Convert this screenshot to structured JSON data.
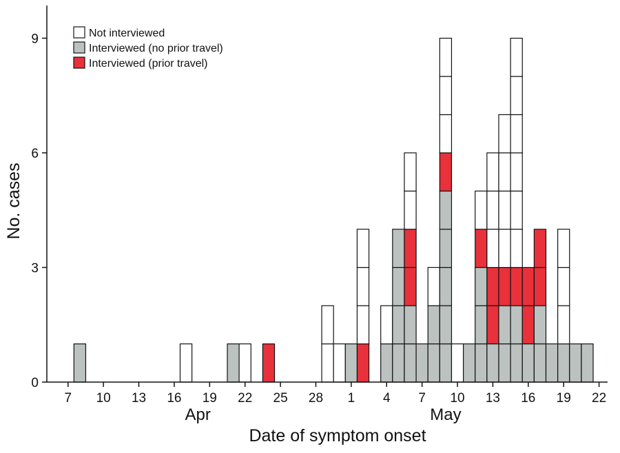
{
  "chart_data": {
    "type": "bar",
    "stacked": true,
    "unit_blocks": true,
    "xlabel": "Date of symptom onset",
    "ylabel": "No. cases",
    "ylim": [
      0,
      10
    ],
    "yticks": [
      0,
      3,
      6,
      9
    ],
    "x_tick_labels": [
      {
        "date": "2018-04-07",
        "label": "7"
      },
      {
        "date": "2018-04-10",
        "label": "10"
      },
      {
        "date": "2018-04-13",
        "label": "13"
      },
      {
        "date": "2018-04-16",
        "label": "16"
      },
      {
        "date": "2018-04-19",
        "label": "19"
      },
      {
        "date": "2018-04-22",
        "label": "22"
      },
      {
        "date": "2018-04-25",
        "label": "25"
      },
      {
        "date": "2018-04-28",
        "label": "28"
      },
      {
        "date": "2018-05-01",
        "label": "1"
      },
      {
        "date": "2018-05-04",
        "label": "4"
      },
      {
        "date": "2018-05-07",
        "label": "7"
      },
      {
        "date": "2018-05-10",
        "label": "10"
      },
      {
        "date": "2018-05-13",
        "label": "13"
      },
      {
        "date": "2018-05-16",
        "label": "16"
      },
      {
        "date": "2018-05-19",
        "label": "19"
      },
      {
        "date": "2018-05-22",
        "label": "22"
      }
    ],
    "month_labels": [
      {
        "label": "Apr",
        "date": "2018-04-18"
      },
      {
        "label": "May",
        "date": "2018-05-09"
      }
    ],
    "legend_position": "top-left",
    "series": [
      {
        "name": "Interviewed (no prior travel)",
        "color": "#bcc2bf"
      },
      {
        "name": "Interviewed (prior travel)",
        "color": "#e8313b"
      },
      {
        "name": "Not interviewed",
        "color": "#ffffff"
      }
    ],
    "legend_order": [
      2,
      0,
      1
    ],
    "dates": [
      "2018-04-08",
      "2018-04-17",
      "2018-04-21",
      "2018-04-22",
      "2018-04-24",
      "2018-04-29",
      "2018-04-30",
      "2018-05-01",
      "2018-05-02",
      "2018-05-04",
      "2018-05-05",
      "2018-05-06",
      "2018-05-07",
      "2018-05-08",
      "2018-05-09",
      "2018-05-10",
      "2018-05-11",
      "2018-05-12",
      "2018-05-13",
      "2018-05-14",
      "2018-05-15",
      "2018-05-16",
      "2018-05-17",
      "2018-05-18",
      "2018-05-19",
      "2018-05-20",
      "2018-05-21"
    ],
    "values": [
      [
        1,
        0,
        1,
        0,
        0,
        0,
        0,
        1,
        0,
        1,
        4,
        2,
        1,
        2,
        5,
        0,
        1,
        3,
        1,
        2,
        2,
        1,
        2,
        1,
        1,
        1,
        1
      ],
      [
        0,
        0,
        0,
        0,
        1,
        0,
        0,
        0,
        1,
        0,
        0,
        2,
        0,
        0,
        1,
        0,
        0,
        1,
        2,
        1,
        1,
        2,
        2,
        0,
        0,
        0,
        0
      ],
      [
        0,
        1,
        0,
        1,
        0,
        2,
        1,
        0,
        3,
        1,
        0,
        2,
        0,
        1,
        3,
        1,
        0,
        1,
        3,
        4,
        6,
        0,
        0,
        0,
        3,
        0,
        0
      ]
    ]
  }
}
